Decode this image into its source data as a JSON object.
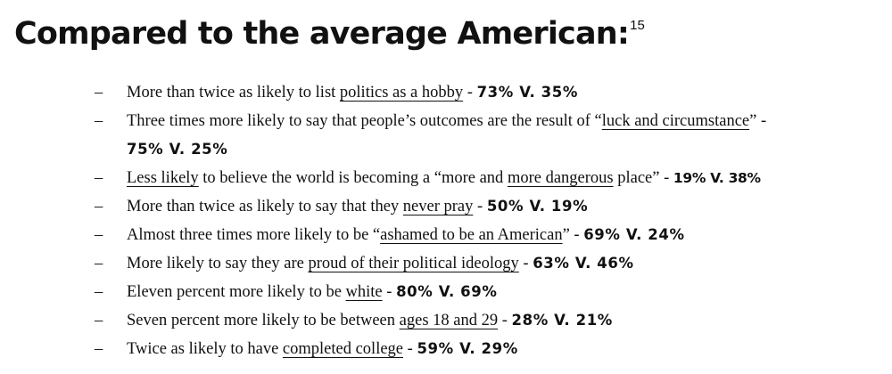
{
  "heading": {
    "title": "Compared to the average American:",
    "footnote": "15"
  },
  "bullet_marker": "–",
  "items": [
    {
      "pre": "More than twice as likely to list ",
      "link": "politics as a hobby",
      "post": " - ",
      "stat": "73% V. 35%"
    },
    {
      "pre": "Three times more likely to say that people’s outcomes are the result of “",
      "link": "luck and circumstance",
      "post": "” - ",
      "stat": "75% V. 25%"
    },
    {
      "pre": "",
      "link": "Less likely",
      "mid": " to believe the world is becoming a “more and ",
      "link2": "more dangerous",
      "post": " place” - ",
      "stat": "19% V. 38%"
    },
    {
      "pre": "More than twice as likely to say that they ",
      "link": "never pray",
      "post": " - ",
      "stat": "50% V. 19%"
    },
    {
      "pre": "Almost three times more likely to be “",
      "link": "ashamed to be an American",
      "post": "” - ",
      "stat": "69% V. 24%"
    },
    {
      "pre": "More likely to say they are ",
      "link": "proud of their political ideology",
      "post": " - ",
      "stat": "63% V. 46%"
    },
    {
      "pre": "Eleven percent more likely to be ",
      "link": "white",
      "post": " - ",
      "stat": "80% V. 69%"
    },
    {
      "pre": "Seven percent more likely to be between ",
      "link": "ages 18 and 29",
      "post": " - ",
      "stat": "28% V. 21%"
    },
    {
      "pre": "Twice as likely to have ",
      "link": "completed college",
      "post": " - ",
      "stat": "59% V. 29%"
    }
  ]
}
